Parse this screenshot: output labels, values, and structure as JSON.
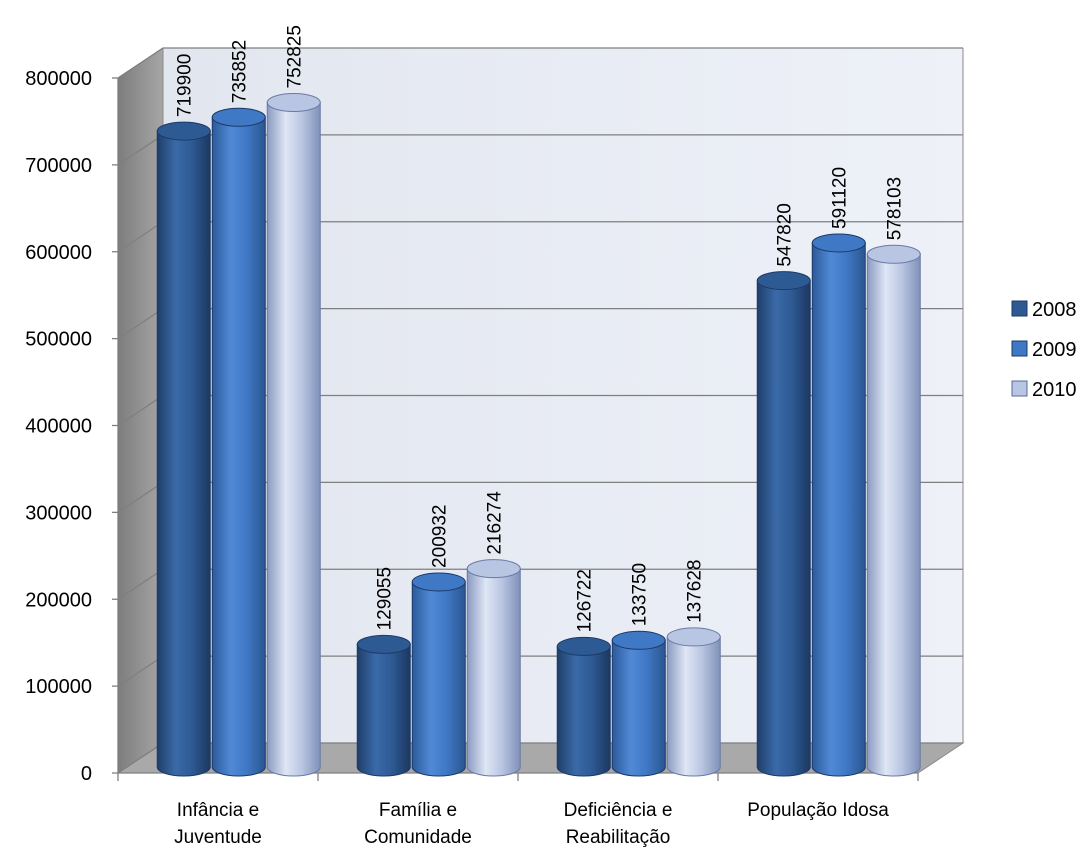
{
  "chart_data": {
    "type": "bar",
    "style": "3d-cylinder",
    "categories": [
      [
        "Infância e",
        "Juventude"
      ],
      [
        "Família e",
        "Comunidade"
      ],
      [
        "Deficiência e",
        "Reabilitação"
      ],
      [
        "População Idosa"
      ]
    ],
    "series": [
      {
        "name": "2008",
        "values": [
          719900,
          129055,
          126722,
          547820
        ],
        "color": "#2e5a94"
      },
      {
        "name": "2009",
        "values": [
          735852,
          200932,
          133750,
          591120
        ],
        "color": "#3f78c4"
      },
      {
        "name": "2010",
        "values": [
          752825,
          216274,
          137628,
          578103
        ],
        "color": "#b9c6e3"
      }
    ],
    "ylim": [
      0,
      800000
    ],
    "yticks": [
      "0",
      "100000",
      "200000",
      "300000",
      "400000",
      "500000",
      "600000",
      "700000",
      "800000"
    ],
    "grid": true,
    "legend_position": "right",
    "data_labels": true
  }
}
